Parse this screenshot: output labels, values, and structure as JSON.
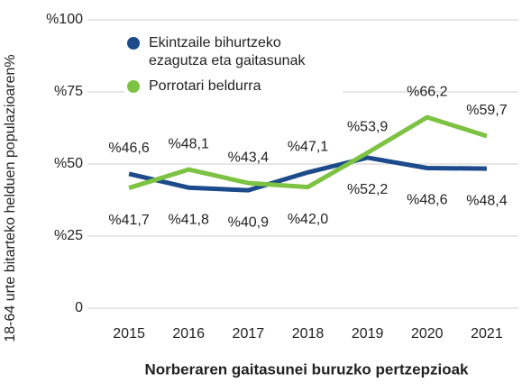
{
  "chart_data": {
    "type": "line",
    "ylabel": "18-64 urte bitarteko helduen populazioaren%",
    "xlabel": "Norberaren gaitasunei buruzko pertzepzioak",
    "categories": [
      "2015",
      "2016",
      "2017",
      "2018",
      "2019",
      "2020",
      "2021"
    ],
    "series": [
      {
        "name": "Ekintzaile bihurtzeko ezagutza eta gaitasunak",
        "color": "#1d4a8a",
        "values": [
          46.6,
          41.8,
          40.9,
          47.1,
          52.2,
          48.6,
          48.4
        ],
        "value_labels": [
          "%46,6",
          "%41,8",
          "%40,9",
          "%47,1",
          "%52,2",
          "%48,6",
          "%48,4"
        ]
      },
      {
        "name": "Porrotari beldurra",
        "color": "#7dc242",
        "values": [
          41.7,
          48.1,
          43.4,
          42.0,
          53.9,
          66.2,
          59.7
        ],
        "value_labels": [
          "%41,7",
          "%48,1",
          "%43,4",
          "%42,0",
          "%53,9",
          "%66,2",
          "%59,7"
        ]
      }
    ],
    "ylim": [
      0,
      100
    ],
    "yticks": [
      0,
      {
        "value": 25,
        "label": "%25"
      },
      {
        "value": 50,
        "label": "%50"
      },
      {
        "value": 75,
        "label": "%75"
      },
      {
        "value": 100,
        "label": "%100"
      }
    ],
    "grid": true,
    "legend": "upper left"
  }
}
